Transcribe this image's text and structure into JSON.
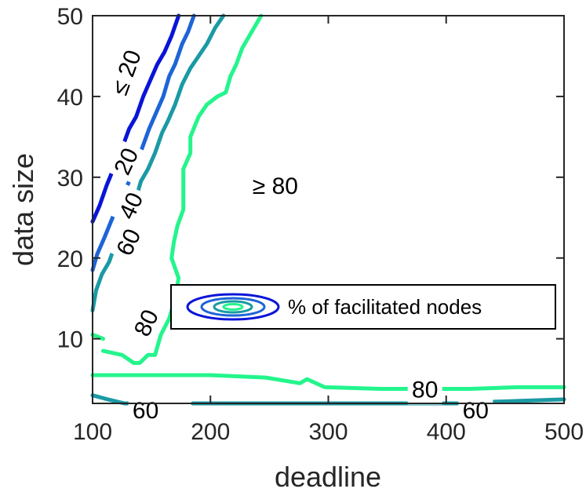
{
  "chart_data": {
    "type": "contour",
    "xlabel": "deadline",
    "ylabel": "data size",
    "xlim": [
      100,
      500
    ],
    "ylim": [
      2,
      50
    ],
    "x_ticks": [
      "100",
      "200",
      "300",
      "400",
      "500"
    ],
    "y_ticks": [
      "10",
      "20",
      "30",
      "40",
      "50"
    ],
    "legend": {
      "label": "% of facilitated nodes",
      "placement": "inside-lower-right"
    },
    "region_labels": [
      {
        "text": "≤ 20",
        "x": 128,
        "y": 43,
        "rotation": -70
      },
      {
        "text": "≥ 80",
        "x": 255,
        "y": 29,
        "rotation": 0
      }
    ],
    "levels": [
      {
        "level": 20,
        "color": "#0a14d8",
        "paths": [
          [
            [
              100,
              24.5
            ],
            [
              106,
              26.5
            ],
            [
              112,
              29
            ],
            [
              119,
              31.5
            ],
            [
              126,
              34
            ],
            [
              131,
              36
            ],
            [
              137,
              37.5
            ],
            [
              143,
              40
            ],
            [
              149,
              42
            ],
            [
              155,
              44
            ],
            [
              161,
              45.5
            ],
            [
              167,
              47.5
            ],
            [
              173,
              50
            ]
          ]
        ],
        "labels": [
          {
            "text": "20",
            "x": 128,
            "y": 32,
            "rotation": -65
          }
        ]
      },
      {
        "level": 40,
        "color": "#1e64d8",
        "paths": [
          [
            [
              100,
              18.5
            ],
            [
              104,
              20.5
            ],
            [
              110,
              22.5
            ],
            [
              117,
              25
            ],
            [
              124,
              27
            ],
            [
              131,
              29.5
            ],
            [
              137,
              31.5
            ],
            [
              143,
              34
            ],
            [
              148,
              36
            ],
            [
              154,
              38
            ],
            [
              160,
              40
            ],
            [
              165,
              42.5
            ],
            [
              170,
              44
            ],
            [
              176,
              46.5
            ],
            [
              181,
              48
            ],
            [
              186,
              50
            ]
          ]
        ],
        "labels": [
          {
            "text": "40",
            "x": 132,
            "y": 26.5,
            "rotation": -65
          }
        ]
      },
      {
        "level": 60,
        "color": "#1a9aa4",
        "paths": [
          [
            [
              100,
              13.5
            ],
            [
              103,
              16
            ],
            [
              108,
              18
            ],
            [
              114,
              19.5
            ],
            [
              120,
              22
            ],
            [
              128,
              24.5
            ],
            [
              136,
              27
            ],
            [
              141,
              29.5
            ],
            [
              147,
              31
            ],
            [
              153,
              33
            ],
            [
              159,
              35.5
            ],
            [
              164,
              37
            ],
            [
              170,
              39
            ],
            [
              176,
              41.5
            ],
            [
              183,
              43.5
            ],
            [
              190,
              45
            ],
            [
              197,
              46.5
            ],
            [
              204,
              48.5
            ],
            [
              211,
              50
            ]
          ],
          [
            [
              100,
              3
            ],
            [
              113,
              2.5
            ],
            [
              127,
              2
            ],
            [
              150,
              2
            ]
          ],
          [
            [
              185,
              2
            ],
            [
              330,
              2
            ],
            [
              380,
              2
            ],
            [
              420,
              2
            ],
            [
              440,
              2.2
            ],
            [
              500,
              2.5
            ]
          ]
        ],
        "labels": [
          {
            "text": "60",
            "x": 130,
            "y": 22,
            "rotation": -65
          },
          {
            "text": "60",
            "x": 145,
            "y": 1.2,
            "rotation": 0
          },
          {
            "text": "60",
            "x": 425,
            "y": 1.2,
            "rotation": 0
          }
        ]
      },
      {
        "level": 80,
        "color": "#23f58c",
        "paths": [
          [
            [
              109,
              8.5
            ],
            [
              125,
              8
            ],
            [
              135,
              7
            ],
            [
              140,
              7
            ],
            [
              147,
              8
            ],
            [
              153,
              8
            ],
            [
              158,
              10.5
            ],
            [
              165,
              12.5
            ],
            [
              170,
              15
            ],
            [
              173,
              17.5
            ],
            [
              167,
              20
            ],
            [
              169,
              22
            ],
            [
              172,
              24
            ],
            [
              177,
              26
            ],
            [
              177,
              28
            ],
            [
              177,
              31
            ],
            [
              183,
              33
            ],
            [
              183,
              35
            ],
            [
              190,
              37.5
            ],
            [
              197,
              39
            ],
            [
              206,
              40
            ],
            [
              213,
              40.5
            ],
            [
              217,
              42.5
            ],
            [
              222,
              44
            ],
            [
              227,
              46
            ],
            [
              235,
              48
            ],
            [
              243,
              50
            ]
          ],
          [
            [
              100,
              10.5
            ],
            [
              109,
              10
            ]
          ],
          [
            [
              100,
              5.5
            ],
            [
              145,
              5.5
            ],
            [
              200,
              5.5
            ],
            [
              247,
              5.2
            ],
            [
              276,
              4.5
            ],
            [
              282,
              5
            ],
            [
              297,
              4
            ],
            [
              345,
              3.8
            ],
            [
              400,
              3.8
            ],
            [
              420,
              3.8
            ],
            [
              460,
              4
            ],
            [
              500,
              4
            ]
          ]
        ],
        "labels": [
          {
            "text": "80",
            "x": 145,
            "y": 12,
            "rotation": -65
          },
          {
            "text": "80",
            "x": 382,
            "y": 3.8,
            "rotation": 0
          }
        ]
      }
    ]
  },
  "legend": {
    "label": "% of facilitated nodes"
  }
}
